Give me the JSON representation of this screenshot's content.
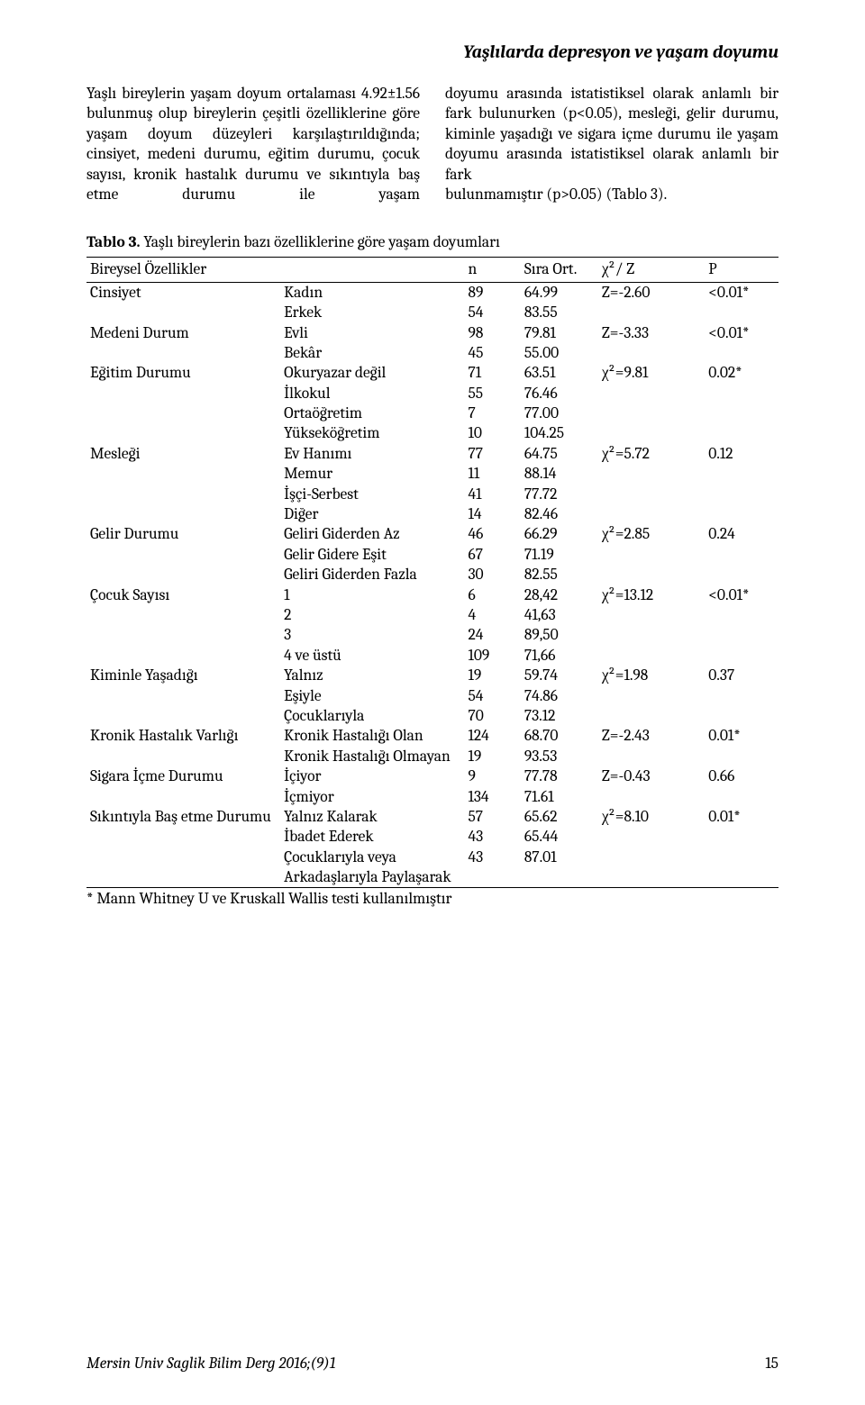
{
  "header": {
    "running_title": "Yaşlılarda depresyon ve yaşam doyumu"
  },
  "paragraph": {
    "left": "Yaşlı bireylerin yaşam doyum ortalaması 4.92±1.56 bulunmuş olup bireylerin çeşitli özelliklerine göre yaşam doyum düzeyleri karşılaştırıldığında; cinsiyet, medeni durumu, eğitim durumu, çocuk sayısı, kronik hastalık durumu ve sıkıntıyla baş etme durumu ile yaşam",
    "right_part1": "doyumu arasında istatistiksel olarak anlamlı bir fark bulunurken (p<0.05), mesleği, gelir durumu, kiminle yaşadığı ve sigara içme durumu ile yaşam doyumu arasında istatistiksel olarak anlamlı bir fark",
    "right_part2": "bulunmamıştır (p>0.05) (Tablo 3)."
  },
  "table": {
    "caption_label": "Tablo 3.",
    "caption_text": " Yaşlı bireylerin bazı özelliklerine göre yaşam doyumları",
    "head": {
      "var": "Bireysel Özellikler",
      "cat": "",
      "n": "n",
      "sira": "Sıra Ort.",
      "chi": "χ²/ Z",
      "p": "P"
    },
    "rows": [
      {
        "var": "Cinsiyet",
        "cat": "Kadın",
        "n": "89",
        "sira": "64.99",
        "chi": "Z=-2.60",
        "p": "<0.01*"
      },
      {
        "var": "",
        "cat": "Erkek",
        "n": "54",
        "sira": "83.55",
        "chi": "",
        "p": ""
      },
      {
        "var": "Medeni Durum",
        "cat": "Evli",
        "n": "98",
        "sira": "79.81",
        "chi": "Z=-3.33",
        "p": "<0.01*"
      },
      {
        "var": "",
        "cat": "Bekâr",
        "n": "45",
        "sira": "55.00",
        "chi": "",
        "p": ""
      },
      {
        "var": "Eğitim Durumu",
        "cat": "Okuryazar değil",
        "n": "71",
        "sira": "63.51",
        "chi": "χ²=9.81",
        "p": "0.02*"
      },
      {
        "var": "",
        "cat": "İlkokul",
        "n": "55",
        "sira": "76.46",
        "chi": "",
        "p": ""
      },
      {
        "var": "",
        "cat": "Ortaöğretim",
        "n": "7",
        "sira": "77.00",
        "chi": "",
        "p": ""
      },
      {
        "var": "",
        "cat": "Yükseköğretim",
        "n": "10",
        "sira": "104.25",
        "chi": "",
        "p": ""
      },
      {
        "var": "Mesleği",
        "cat": "Ev Hanımı",
        "n": "77",
        "sira": "64.75",
        "chi": "χ²=5.72",
        "p": "0.12"
      },
      {
        "var": "",
        "cat": "Memur",
        "n": "11",
        "sira": "88.14",
        "chi": "",
        "p": ""
      },
      {
        "var": "",
        "cat": "İşçi-Serbest",
        "n": "41",
        "sira": "77.72",
        "chi": "",
        "p": ""
      },
      {
        "var": "",
        "cat": "Diğer",
        "n": "14",
        "sira": "82.46",
        "chi": "",
        "p": ""
      },
      {
        "var": "Gelir Durumu",
        "cat": "Geliri Giderden Az",
        "n": "46",
        "sira": "66.29",
        "chi": "χ²=2.85",
        "p": "0.24"
      },
      {
        "var": "",
        "cat": "Gelir Gidere Eşit",
        "n": "67",
        "sira": "71.19",
        "chi": "",
        "p": ""
      },
      {
        "var": "",
        "cat": "Geliri Giderden Fazla",
        "n": "30",
        "sira": "82.55",
        "chi": "",
        "p": ""
      },
      {
        "var": "Çocuk Sayısı",
        "cat": "1",
        "n": "6",
        "sira": "28,42",
        "chi": "χ²=13.12",
        "p": "<0.01*"
      },
      {
        "var": "",
        "cat": "2",
        "n": "4",
        "sira": "41,63",
        "chi": "",
        "p": ""
      },
      {
        "var": "",
        "cat": "3",
        "n": "24",
        "sira": "89,50",
        "chi": "",
        "p": ""
      },
      {
        "var": "",
        "cat": "4 ve üstü",
        "n": "109",
        "sira": "71,66",
        "chi": "",
        "p": ""
      },
      {
        "var": "Kiminle Yaşadığı",
        "cat": "Yalnız",
        "n": "19",
        "sira": "59.74",
        "chi": "χ²=1.98",
        "p": "0.37"
      },
      {
        "var": "",
        "cat": "Eşiyle",
        "n": "54",
        "sira": "74.86",
        "chi": "",
        "p": ""
      },
      {
        "var": "",
        "cat": "Çocuklarıyla",
        "n": "70",
        "sira": "73.12",
        "chi": "",
        "p": ""
      },
      {
        "var": "Kronik Hastalık Varlığı",
        "cat": "Kronik Hastalığı Olan",
        "n": "124",
        "sira": "68.70",
        "chi": "Z=-2.43",
        "p": "0.01*"
      },
      {
        "var": "",
        "cat": "Kronik Hastalığı Olmayan",
        "n": "19",
        "sira": "93.53",
        "chi": "",
        "p": ""
      },
      {
        "var": "Sigara İçme Durumu",
        "cat": "İçiyor",
        "n": "9",
        "sira": "77.78",
        "chi": "Z=-0.43",
        "p": "0.66"
      },
      {
        "var": "",
        "cat": "İçmiyor",
        "n": "134",
        "sira": "71.61",
        "chi": "",
        "p": ""
      },
      {
        "var": "Sıkıntıyla Baş etme Durumu",
        "cat": "Yalnız Kalarak",
        "n": "57",
        "sira": "65.62",
        "chi": "χ²=8.10",
        "p": "0.01*"
      },
      {
        "var": "",
        "cat": "İbadet Ederek",
        "n": "43",
        "sira": "65.44",
        "chi": "",
        "p": ""
      },
      {
        "var": "",
        "cat": "Çocuklarıyla veya Arkadaşlarıyla Paylaşarak",
        "n": "43",
        "sira": "87.01",
        "chi": "",
        "p": ""
      }
    ],
    "footnote": "* Mann Whitney U ve Kruskall Wallis testi kullanılmıştır"
  },
  "footer": {
    "journal": "Mersin Univ Saglik Bilim Derg 2016;(9)1",
    "page": "15"
  }
}
